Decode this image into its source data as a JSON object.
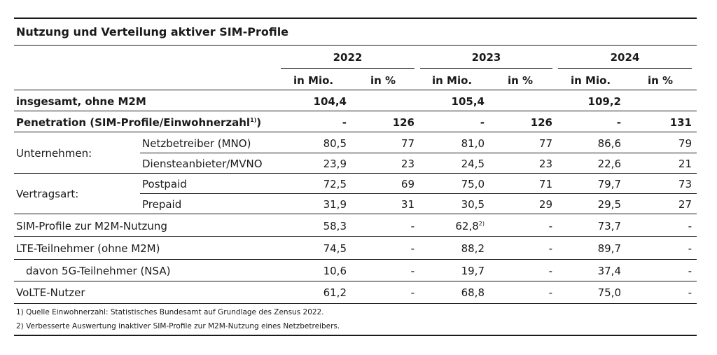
{
  "table": {
    "title": "Nutzung und Verteilung aktiver SIM-Profile",
    "years": [
      "2022",
      "2023",
      "2024"
    ],
    "unit_mio": "in Mio.",
    "unit_pct": "in %",
    "rows": {
      "total": {
        "label": "insgesamt, ohne M2M",
        "v": [
          "104,4",
          "",
          "105,4",
          "",
          "109,2",
          ""
        ]
      },
      "penetration": {
        "label": "Penetration (SIM-Profile/Einwohnerzahl",
        "sup": "1)",
        "label_end": ")",
        "v": [
          "-",
          "126",
          "-",
          "126",
          "-",
          "131"
        ]
      },
      "unternehmen_group": "Unternehmen:",
      "mno": {
        "label": "Netzbetreiber (MNO)",
        "v": [
          "80,5",
          "77",
          "81,0",
          "77",
          "86,6",
          "79"
        ]
      },
      "mvno": {
        "label": "Diensteanbieter/MVNO",
        "v": [
          "23,9",
          "23",
          "24,5",
          "23",
          "22,6",
          "21"
        ]
      },
      "vertragsart_group": "Vertragsart:",
      "postpaid": {
        "label": "Postpaid",
        "v": [
          "72,5",
          "69",
          "75,0",
          "71",
          "79,7",
          "73"
        ]
      },
      "prepaid": {
        "label": "Prepaid",
        "v": [
          "31,9",
          "31",
          "30,5",
          "29",
          "29,5",
          "27"
        ]
      },
      "m2m": {
        "label": "SIM-Profile zur M2M-Nutzung",
        "v": [
          "58,3",
          "-",
          "62,8",
          "-",
          "73,7",
          "-"
        ],
        "sup_2023": "2)"
      },
      "lte": {
        "label": "LTE-Teilnehmer (ohne M2M)",
        "v": [
          "74,5",
          "-",
          "88,2",
          "-",
          "89,7",
          "-"
        ]
      },
      "fiveg": {
        "label": "davon 5G-Teilnehmer (NSA)",
        "v": [
          "10,6",
          "-",
          "19,7",
          "-",
          "37,4",
          "-"
        ]
      },
      "volte": {
        "label": "VoLTE-Nutzer",
        "v": [
          "61,2",
          "-",
          "68,8",
          "-",
          "75,0",
          "-"
        ]
      }
    },
    "footnotes": [
      "1) Quelle Einwohnerzahl: Statistisches Bundesamt auf Grundlage des Zensus 2022.",
      "2) Verbesserte Auswertung inaktiver SIM-Profile zur M2M-Nutzung eines Netzbetreibers."
    ]
  }
}
